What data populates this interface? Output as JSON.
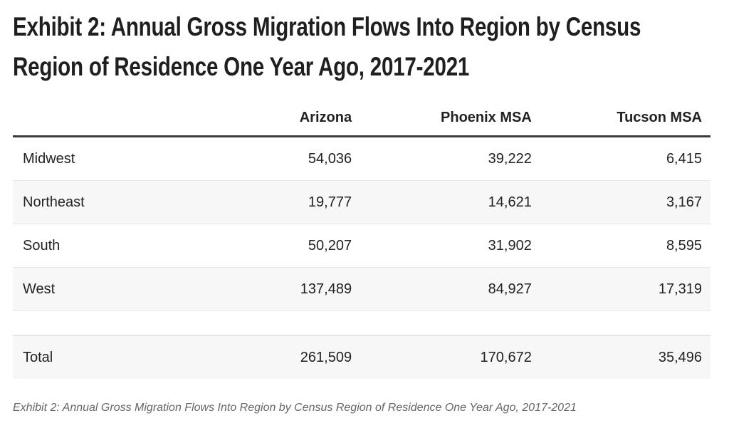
{
  "title": "Exhibit 2: Annual Gross Migration Flows Into Region by Census Region of Residence One Year Ago, 2017-2021",
  "table": {
    "columns": [
      "",
      "Arizona",
      "Phoenix MSA",
      "Tucson MSA"
    ],
    "rows": [
      {
        "label": "Midwest",
        "values": [
          "54,036",
          "39,222",
          "6,415"
        ]
      },
      {
        "label": "Northeast",
        "values": [
          "19,777",
          "14,621",
          "3,167"
        ]
      },
      {
        "label": "South",
        "values": [
          "50,207",
          "31,902",
          "8,595"
        ]
      },
      {
        "label": "West",
        "values": [
          "137,489",
          "84,927",
          "17,319"
        ]
      }
    ],
    "total": {
      "label": "Total",
      "values": [
        "261,509",
        "170,672",
        "35,496"
      ]
    }
  },
  "caption": "Exhibit 2: Annual Gross Migration Flows Into Region by Census Region of Residence One Year Ago, 2017-2021"
}
